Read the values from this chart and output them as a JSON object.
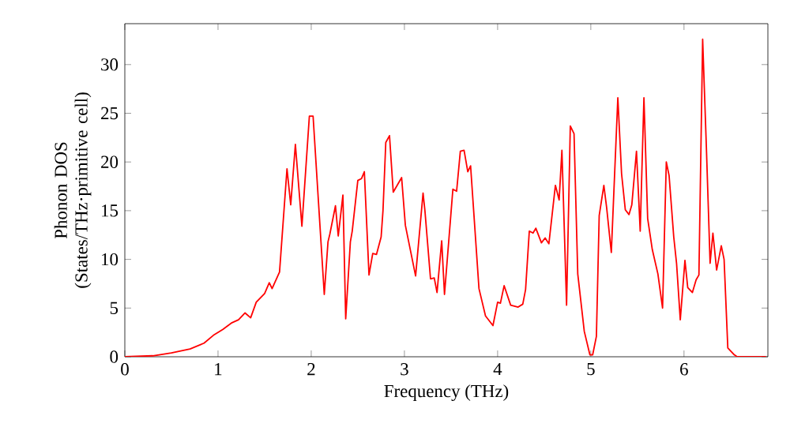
{
  "chart_data": {
    "type": "line",
    "xlabel": "Frequency (THz)",
    "ylabel": "Phonon DOS (States/THz·primitive cell)",
    "color": "#ff0000",
    "line_style": "solid",
    "marker": "none",
    "grid": false,
    "xlim": [
      0,
      6.9
    ],
    "ylim": [
      0,
      34.2
    ],
    "xticks": [
      0,
      1,
      2,
      3,
      4,
      5,
      6
    ],
    "yticks": [
      0,
      5,
      10,
      15,
      20,
      25,
      30
    ],
    "x": [
      0,
      0.3,
      0.5,
      0.7,
      0.85,
      0.95,
      1.05,
      1.15,
      1.22,
      1.29,
      1.35,
      1.41,
      1.5,
      1.55,
      1.58,
      1.66,
      1.74,
      1.78,
      1.83,
      1.9,
      1.98,
      2.02,
      2.14,
      2.18,
      2.2,
      2.26,
      2.29,
      2.34,
      2.37,
      2.42,
      2.44,
      2.5,
      2.54,
      2.57,
      2.62,
      2.66,
      2.7,
      2.75,
      2.77,
      2.8,
      2.84,
      2.88,
      2.97,
      3.01,
      3.12,
      3.2,
      3.22,
      3.28,
      3.32,
      3.35,
      3.4,
      3.43,
      3.52,
      3.56,
      3.6,
      3.64,
      3.68,
      3.71,
      3.8,
      3.87,
      3.95,
      4.0,
      4.03,
      4.07,
      4.14,
      4.22,
      4.27,
      4.3,
      4.34,
      4.38,
      4.41,
      4.47,
      4.51,
      4.55,
      4.62,
      4.66,
      4.69,
      4.74,
      4.78,
      4.82,
      4.86,
      4.93,
      4.99,
      5.02,
      5.06,
      5.09,
      5.14,
      5.17,
      5.22,
      5.29,
      5.33,
      5.37,
      5.41,
      5.44,
      5.49,
      5.53,
      5.57,
      5.61,
      5.66,
      5.72,
      5.77,
      5.81,
      5.84,
      5.89,
      5.92,
      5.96,
      6.01,
      6.04,
      6.09,
      6.13,
      6.16,
      6.2,
      6.24,
      6.28,
      6.31,
      6.35,
      6.4,
      6.43,
      6.47,
      6.54,
      6.57,
      6.88
    ],
    "values": [
      0,
      0.1,
      0.4,
      0.8,
      1.4,
      2.2,
      2.8,
      3.5,
      3.8,
      4.5,
      4.0,
      5.6,
      6.5,
      7.6,
      7.0,
      8.7,
      19.3,
      15.6,
      21.8,
      13.4,
      24.7,
      24.7,
      6.4,
      11.8,
      12.6,
      15.5,
      12.4,
      16.6,
      3.9,
      11.8,
      12.9,
      18.1,
      18.3,
      19.0,
      8.4,
      10.6,
      10.5,
      12.3,
      15.0,
      22.0,
      22.7,
      16.9,
      18.4,
      13.5,
      8.3,
      16.8,
      15.0,
      8.0,
      8.1,
      6.6,
      11.9,
      6.4,
      17.2,
      17.0,
      21.1,
      21.2,
      19.0,
      19.6,
      7.0,
      4.2,
      3.2,
      5.6,
      5.5,
      7.3,
      5.3,
      5.1,
      5.4,
      6.9,
      12.9,
      12.7,
      13.2,
      11.7,
      12.2,
      11.6,
      17.6,
      16.1,
      21.2,
      5.3,
      23.7,
      22.9,
      8.5,
      2.6,
      0.2,
      0.2,
      2.1,
      14.5,
      17.6,
      15.3,
      10.7,
      26.6,
      18.8,
      15.1,
      14.6,
      15.6,
      21.1,
      12.9,
      26.6,
      14.2,
      11.0,
      8.5,
      5.0,
      20.0,
      18.6,
      12.3,
      9.6,
      3.8,
      9.9,
      7.1,
      6.6,
      7.9,
      8.4,
      32.6,
      21.5,
      9.6,
      12.7,
      8.9,
      11.4,
      10.0,
      0.9,
      0.2,
      0,
      0
    ]
  }
}
